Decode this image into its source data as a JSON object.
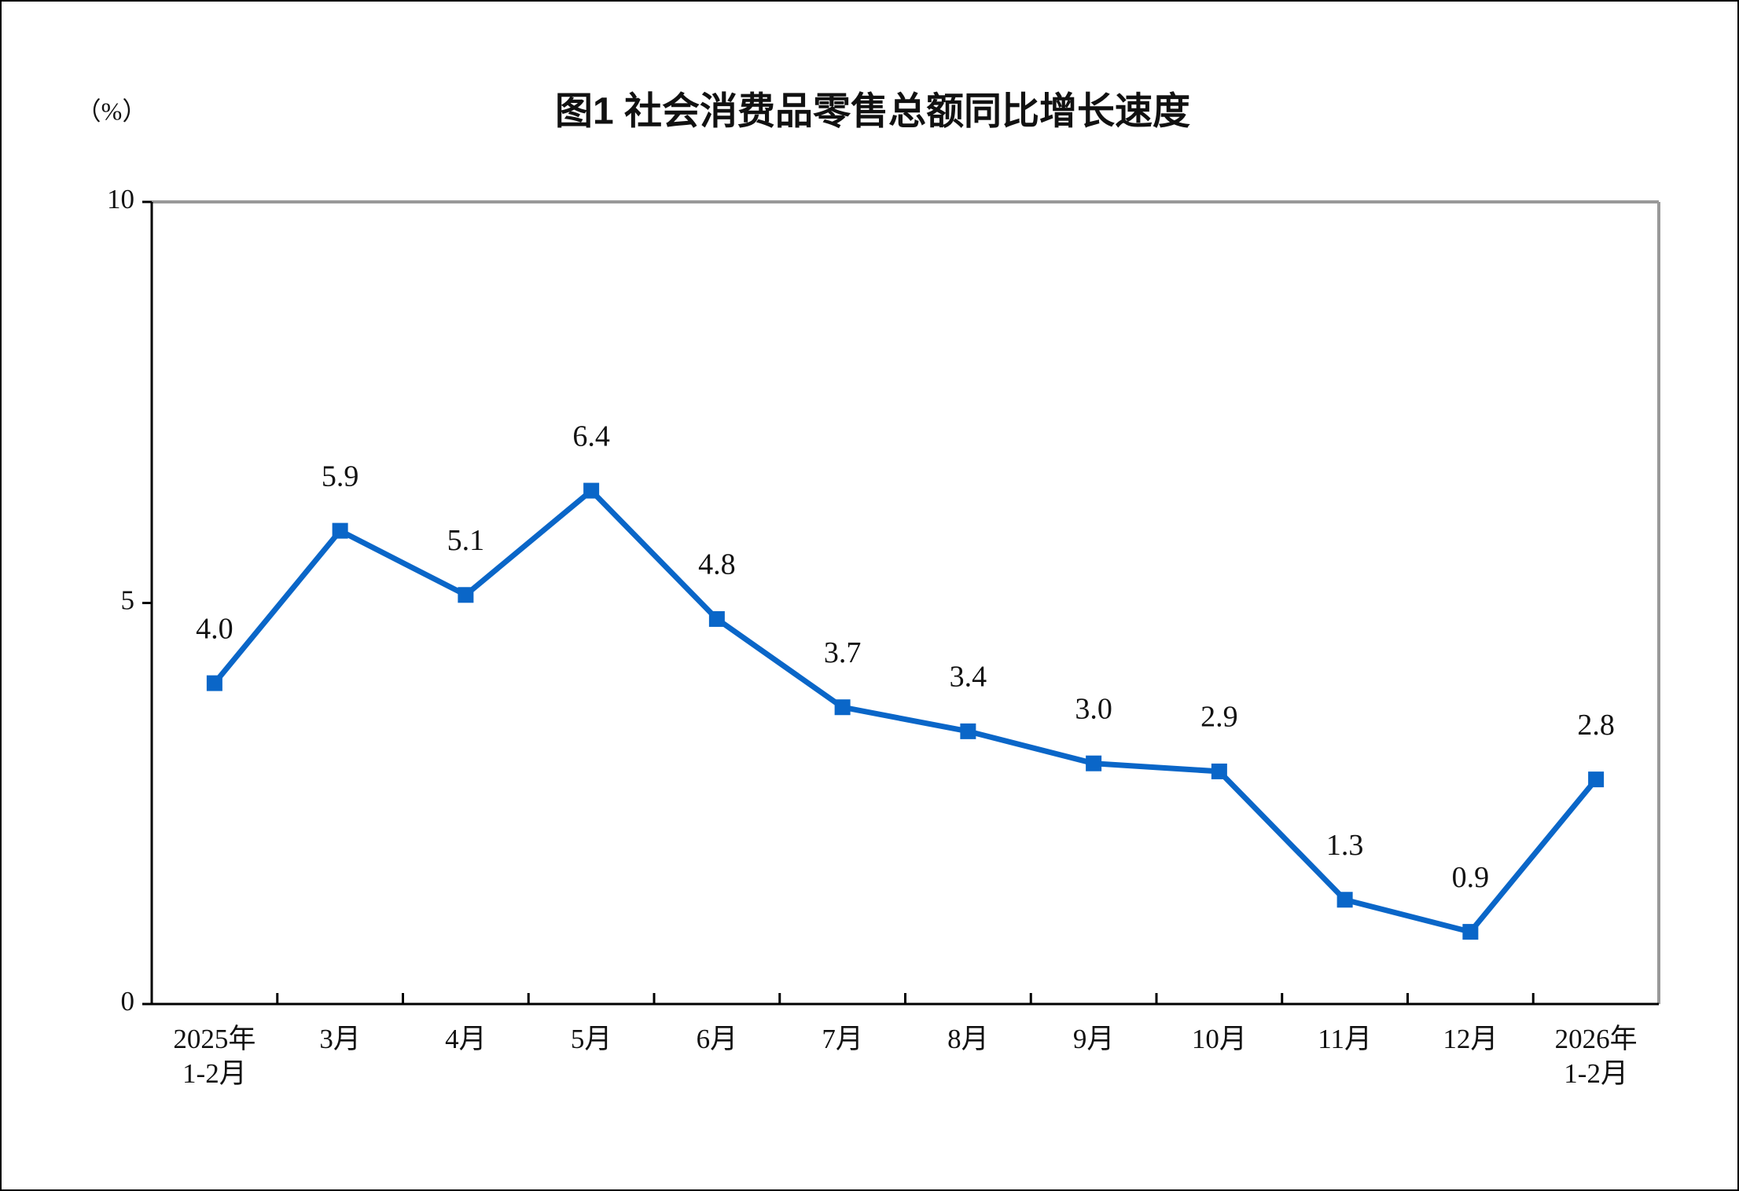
{
  "chart_data": {
    "type": "line",
    "title": "图1  社会消费品零售总额同比增长速度",
    "y_unit": "（%）",
    "categories": [
      "2025年\n1-2月",
      "3月",
      "4月",
      "5月",
      "6月",
      "7月",
      "8月",
      "9月",
      "10月",
      "11月",
      "12月",
      "2026年\n1-2月"
    ],
    "values": [
      4.0,
      5.9,
      5.1,
      6.4,
      4.8,
      3.7,
      3.4,
      3.0,
      2.9,
      1.3,
      0.9,
      2.8
    ],
    "value_labels": [
      "4.0",
      "5.9",
      "5.1",
      "6.4",
      "4.8",
      "3.7",
      "3.4",
      "3.0",
      "2.9",
      "1.3",
      "0.9",
      "2.8"
    ],
    "color": "#0a66c8",
    "ylim": [
      0,
      10
    ],
    "yticks": [
      0,
      5,
      10
    ],
    "grid": false
  }
}
